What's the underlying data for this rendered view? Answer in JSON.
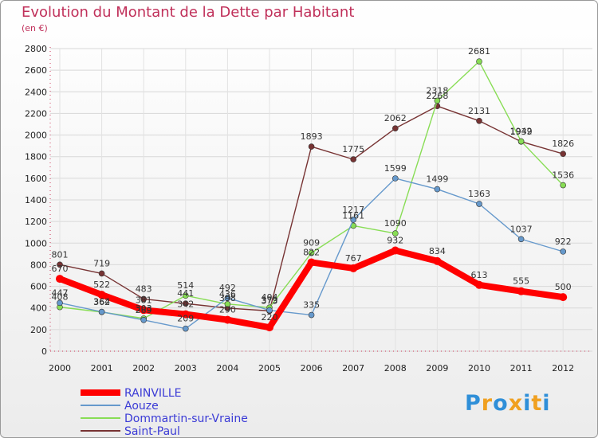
{
  "title": "Evolution du Montant de la Dette par Habitant",
  "subtitle": "(en €)",
  "logo": "Proxiti",
  "chart_data": {
    "type": "line",
    "title": "Evolution du Montant de la Dette par Habitant",
    "subtitle": "(en €)",
    "ylim": [
      0,
      2800
    ],
    "yticks": [
      0,
      200,
      400,
      600,
      800,
      1000,
      1200,
      1400,
      1600,
      1800,
      2000,
      2200,
      2400,
      2600,
      2800
    ],
    "categories": [
      "2000",
      "2001",
      "2002",
      "2003",
      "2004",
      "2005",
      "2006",
      "2007",
      "2008",
      "2009",
      "2010",
      "2011",
      "2012"
    ],
    "legend_position": "bottom-left",
    "series": [
      {
        "name": "RAINVILLE",
        "color": "#ff0000",
        "values": [
          670,
          522,
          381,
          342,
          290,
          220,
          822,
          767,
          932,
          834,
          613,
          555,
          500
        ]
      },
      {
        "name": "Aouze",
        "color": "#6699cc",
        "values": [
          447,
          364,
          289,
          209,
          492,
          379,
          335,
          1217,
          1599,
          1499,
          1363,
          1037,
          922
        ]
      },
      {
        "name": "Dommartin-sur-Vraine",
        "color": "#88dd55",
        "values": [
          408,
          362,
          303,
          514,
          436,
          404,
          909,
          1161,
          1090,
          2318,
          2681,
          1942,
          1536
        ]
      },
      {
        "name": "Saint-Paul",
        "color": "#773333",
        "values": [
          801,
          719,
          483,
          441,
          398,
          373,
          1893,
          1775,
          2062,
          2268,
          2131,
          1939,
          1826
        ]
      }
    ]
  }
}
